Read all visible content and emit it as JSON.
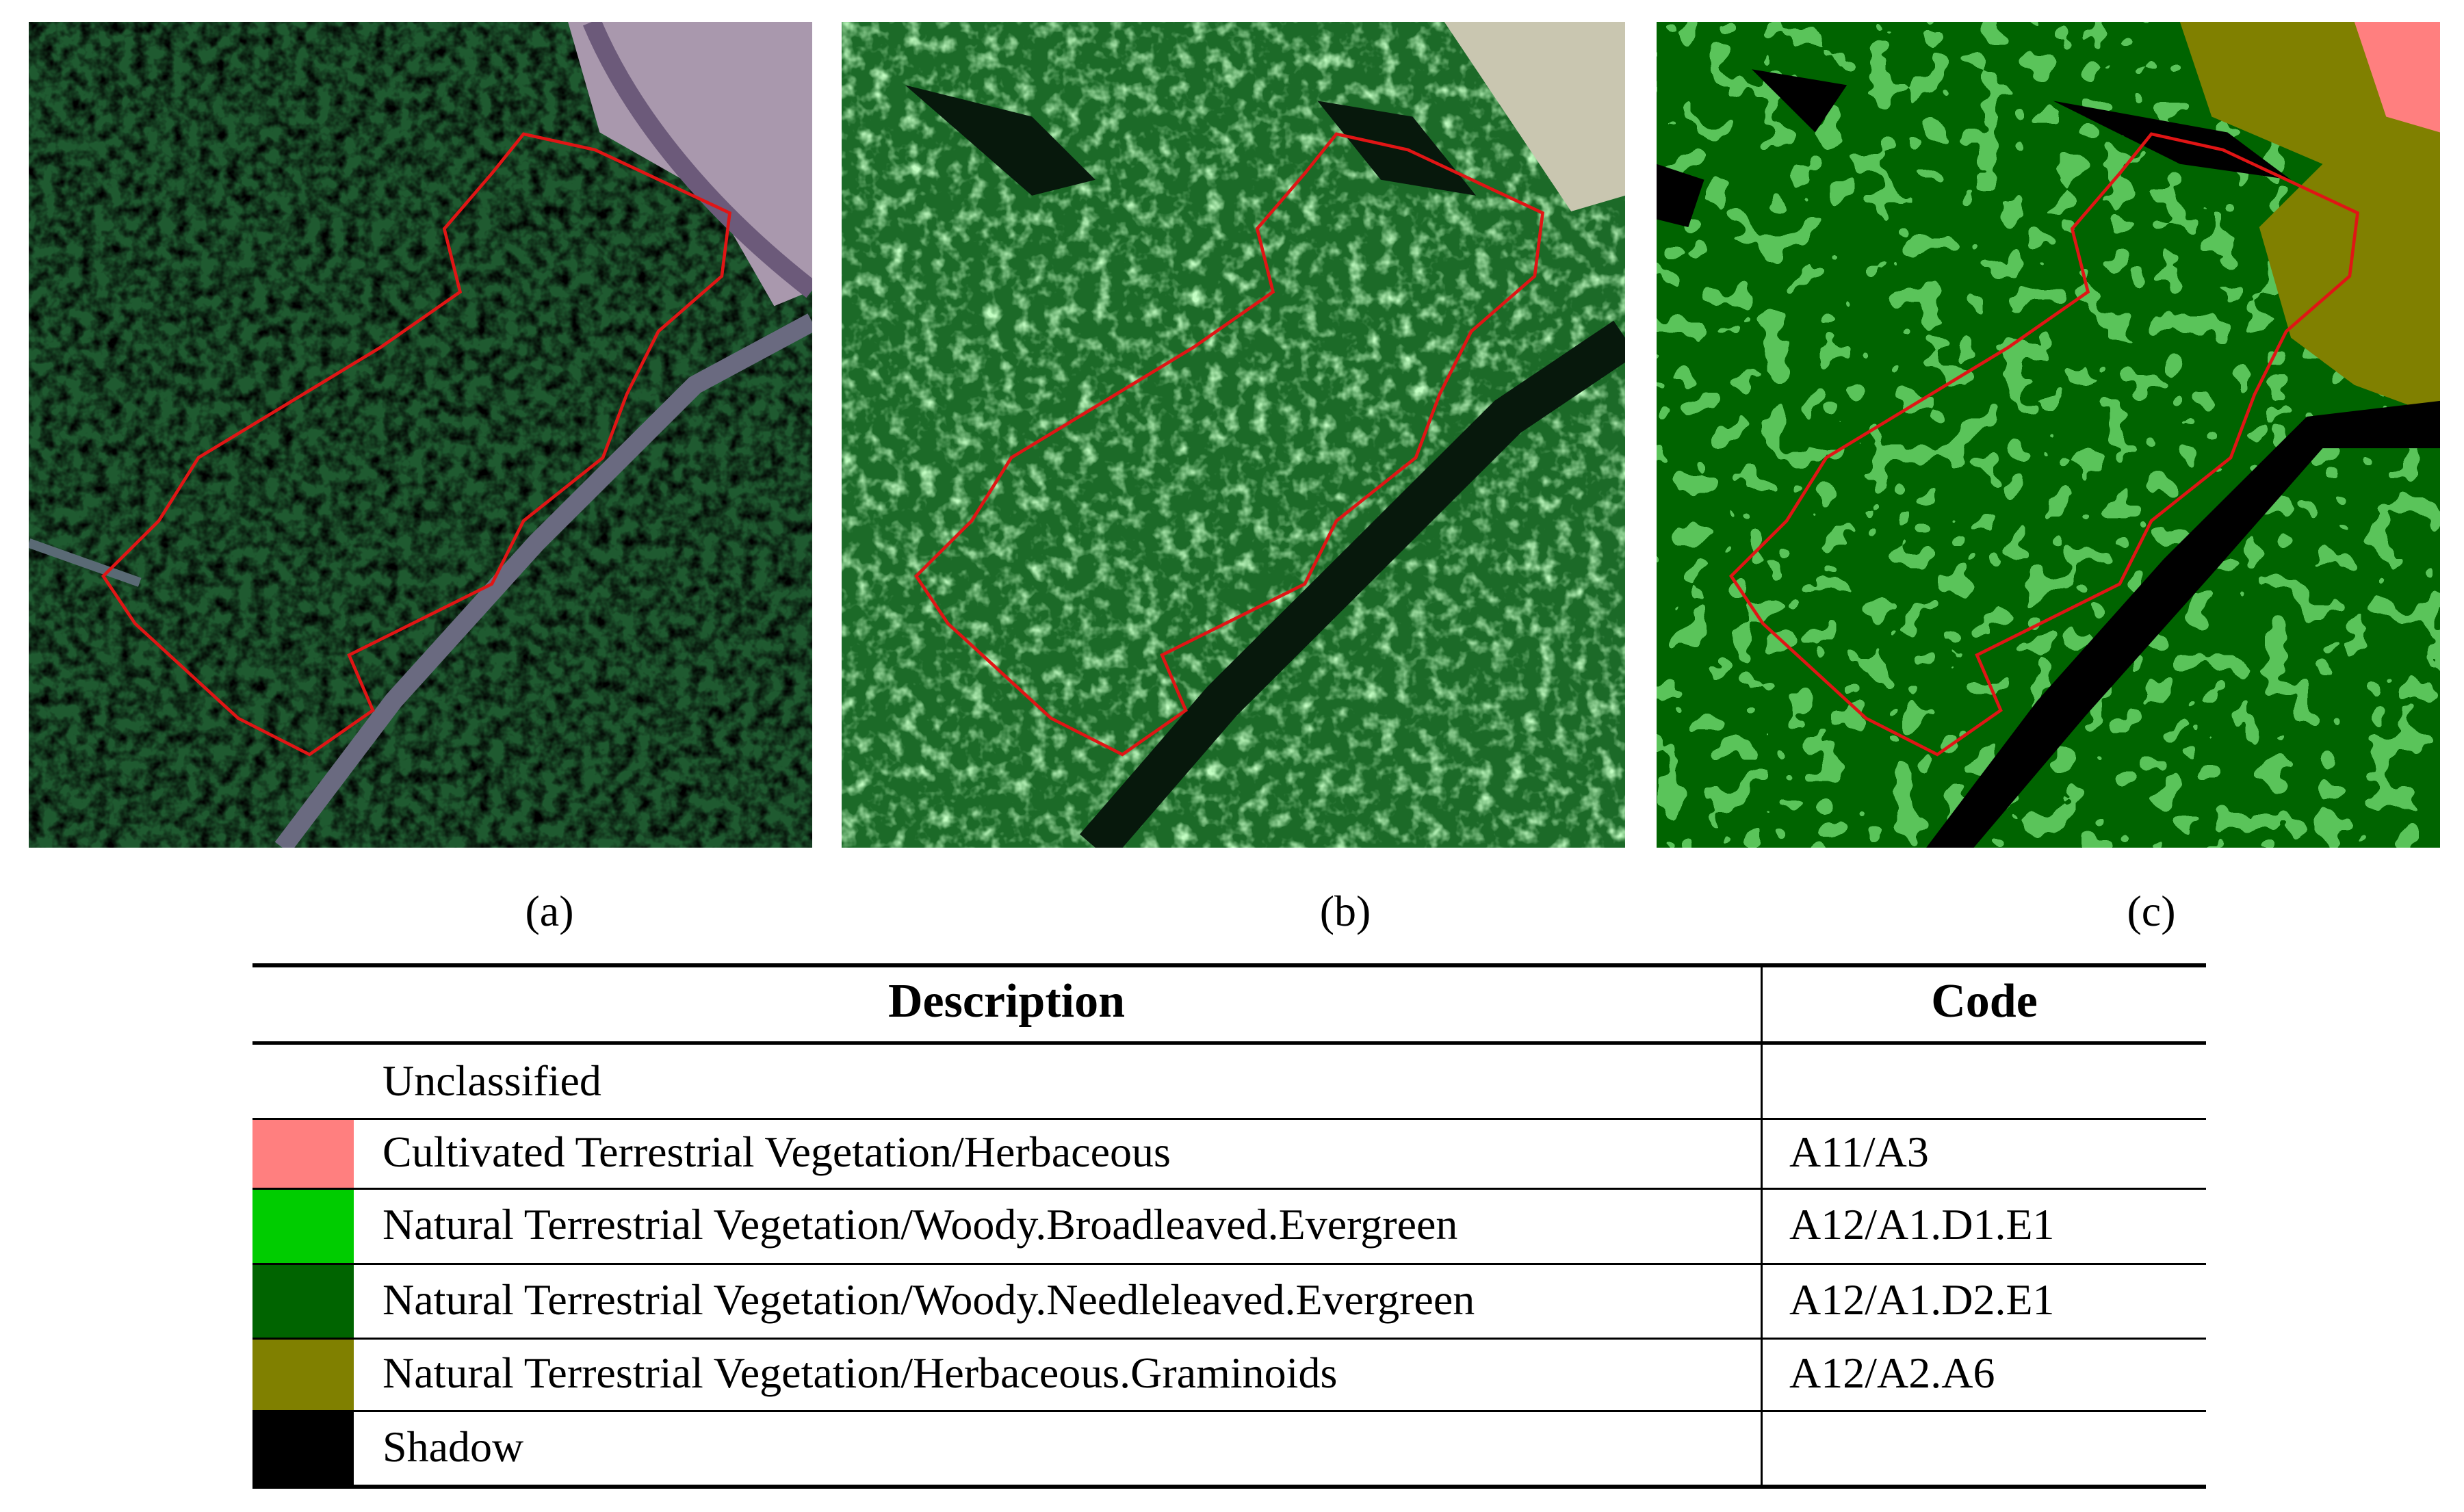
{
  "panels": [
    {
      "label": "(a)"
    },
    {
      "label": "(b)"
    },
    {
      "label": "(c)"
    }
  ],
  "table": {
    "header": {
      "description": "Description",
      "code": "Code"
    },
    "rows": [
      {
        "description": "Unclassified"
      },
      {
        "color": "#ff7f7f",
        "description": "Cultivated Terrestrial Vegetation/Herbaceous",
        "code": "A11/A3"
      },
      {
        "color": "#00cc00",
        "description": "Natural Terrestrial Vegetation/Woody.Broadleaved.Evergreen",
        "code": "A12/A1.D1.E1"
      },
      {
        "color": "#006400",
        "description": "Natural Terrestrial Vegetation/Woody.Needleleaved.Evergreen",
        "code": "A12/A1.D2.E1"
      },
      {
        "color": "#808000",
        "description": "Natural Terrestrial Vegetation/Herbaceous.Graminoids",
        "code": "A12/A2.A6"
      },
      {
        "color": "#000000",
        "description": "Shadow"
      }
    ]
  }
}
